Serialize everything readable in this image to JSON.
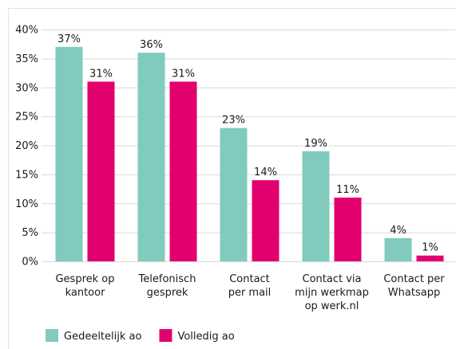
{
  "chart_data": {
    "type": "bar",
    "categories": [
      "Gesprek op\nkantoor",
      "Telefonisch\ngesprek",
      "Contact\nper mail",
      "Contact via\nmijn werkmap\nop werk.nl",
      "Contact per\nWhatsapp"
    ],
    "series": [
      {
        "name": "Gedeeltelijk ao",
        "color": "#80cbbd",
        "values": [
          37,
          36,
          23,
          19,
          4
        ],
        "value_labels": [
          "37%",
          "36%",
          "23%",
          "19%",
          "4%"
        ]
      },
      {
        "name": "Volledig ao",
        "color": "#e2006f",
        "values": [
          31,
          31,
          14,
          11,
          1
        ],
        "value_labels": [
          "31%",
          "31%",
          "14%",
          "11%",
          "1%"
        ]
      }
    ],
    "ylim": [
      0,
      40
    ],
    "yticks": [
      {
        "value": 0,
        "label": "0%"
      },
      {
        "value": 5,
        "label": "5%"
      },
      {
        "value": 10,
        "label": "10%"
      },
      {
        "value": 15,
        "label": "15%"
      },
      {
        "value": 20,
        "label": "20%"
      },
      {
        "value": 25,
        "label": "25%"
      },
      {
        "value": 30,
        "label": "30%"
      },
      {
        "value": 35,
        "label": "35%"
      },
      {
        "value": 40,
        "label": "40%"
      }
    ],
    "grid": true,
    "legend": "bottom"
  }
}
